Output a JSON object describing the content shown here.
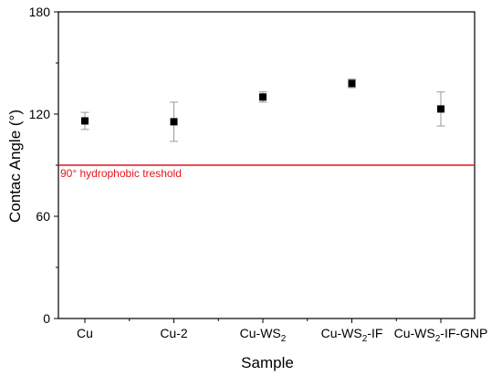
{
  "chart_data": {
    "type": "scatter",
    "xlabel": "Sample",
    "ylabel": "Contac Angle (°)",
    "ylim": [
      0,
      180
    ],
    "yticks": [
      0,
      60,
      120,
      180
    ],
    "grid": false,
    "categories": [
      {
        "base": "Cu",
        "sub": "",
        "suffix": ""
      },
      {
        "base": "Cu-2",
        "sub": "",
        "suffix": ""
      },
      {
        "base": "Cu-WS",
        "sub": "2",
        "suffix": ""
      },
      {
        "base": "Cu-WS",
        "sub": "2",
        "suffix": "-IF"
      },
      {
        "base": "Cu-WS",
        "sub": "2",
        "suffix": "-IF-GNP"
      }
    ],
    "points": [
      {
        "value": 116,
        "err_low": 111,
        "err_high": 121
      },
      {
        "value": 115.5,
        "err_low": 104,
        "err_high": 127
      },
      {
        "value": 130,
        "err_low": 127,
        "err_high": 133
      },
      {
        "value": 138,
        "err_low": 135.5,
        "err_high": 140.5
      },
      {
        "value": 123,
        "err_low": 113,
        "err_high": 133
      }
    ],
    "reference_line": {
      "value": 90,
      "label": "90° hydrophobic treshold",
      "color": "#e8141c"
    },
    "marker_color": "#000000",
    "errorbar_color": "#999999"
  }
}
